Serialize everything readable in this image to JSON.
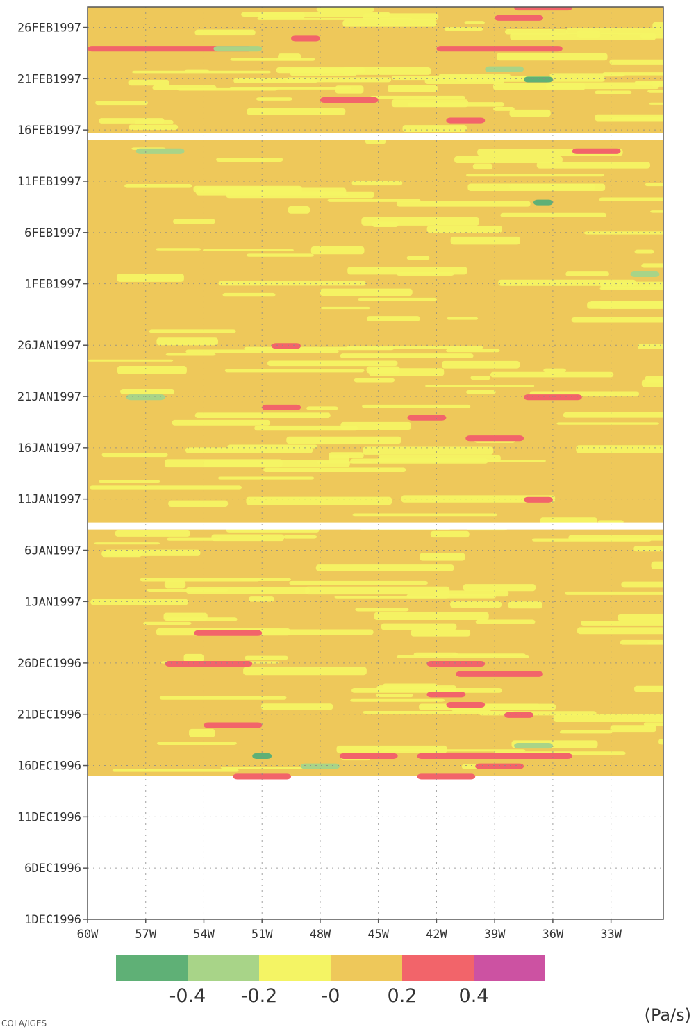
{
  "chart_data": {
    "type": "heatmap",
    "title": "",
    "xlabel": "",
    "ylabel": "",
    "x_ticks": [
      "60W",
      "57W",
      "54W",
      "51W",
      "48W",
      "45W",
      "42W",
      "39W",
      "36W",
      "33W"
    ],
    "x_tick_values": [
      -60,
      -57,
      -54,
      -51,
      -48,
      -45,
      -42,
      -39,
      -36,
      -33
    ],
    "xlim": [
      -60,
      -30.3
    ],
    "y_ticks": [
      "1DEC1996",
      "6DEC1996",
      "11DEC1996",
      "16DEC1996",
      "21DEC1996",
      "26DEC1996",
      "1JAN1997",
      "6JAN1997",
      "11JAN1997",
      "16JAN1997",
      "21JAN1997",
      "26JAN1997",
      "1FEB1997",
      "6FEB1997",
      "11FEB1997",
      "16FEB1997",
      "21FEB1997",
      "26FEB1997"
    ],
    "y_tick_values": [
      "1996-12-01",
      "1996-12-06",
      "1996-12-11",
      "1996-12-16",
      "1996-12-21",
      "1996-12-26",
      "1997-01-01",
      "1997-01-06",
      "1997-01-11",
      "1997-01-16",
      "1997-01-21",
      "1997-01-26",
      "1997-02-01",
      "1997-02-06",
      "1997-02-11",
      "1997-02-16",
      "1997-02-21",
      "1997-02-26"
    ],
    "ylim": [
      "1996-12-01",
      "1997-02-28"
    ],
    "data_start": "1996-12-15",
    "gaps": [
      [
        "1997-01-08",
        "1997-01-09"
      ],
      [
        "1997-02-15",
        "1997-02-16"
      ]
    ],
    "grid": true,
    "colorbar": {
      "placement": "bottom",
      "levels": [
        -0.4,
        -0.2,
        0,
        0.2,
        0.4
      ],
      "labels": [
        "-0.4",
        "-0.2",
        "-0",
        "0.2",
        "0.4"
      ],
      "colors": [
        "#5fb076",
        "#a8d488",
        "#f4f464",
        "#eec85a",
        "#f2646a",
        "#cc52a2"
      ],
      "unit": "(Pa/s)"
    },
    "dominant_value": 0.1,
    "features": [
      {
        "x": [
          -60,
          -51.5
        ],
        "date": "1997-02-24",
        "value": 0.3
      },
      {
        "x": [
          -49.5,
          -48
        ],
        "date": "1997-02-25",
        "value": 0.3
      },
      {
        "x": [
          -42,
          -35.5
        ],
        "date": "1997-02-24",
        "value": 0.3
      },
      {
        "x": [
          -39,
          -36.5
        ],
        "date": "1997-02-27",
        "value": 0.3
      },
      {
        "x": [
          -38,
          -35
        ],
        "date": "1997-02-28",
        "value": 0.3
      },
      {
        "x": [
          -39.5,
          -37.5
        ],
        "date": "1997-02-22",
        "value": -0.3
      },
      {
        "x": [
          -37.5,
          -36
        ],
        "date": "1997-02-21",
        "value": -0.5
      },
      {
        "x": [
          -53.5,
          -51
        ],
        "date": "1997-02-24",
        "value": -0.3
      },
      {
        "x": [
          -48,
          -45
        ],
        "date": "1997-02-19",
        "value": 0.3
      },
      {
        "x": [
          -41.5,
          -39.5
        ],
        "date": "1997-02-17",
        "value": 0.3
      },
      {
        "x": [
          -35,
          -32.5
        ],
        "date": "1997-02-14",
        "value": 0.3
      },
      {
        "x": [
          -57.5,
          -55
        ],
        "date": "1997-02-14",
        "value": -0.3
      },
      {
        "x": [
          -37,
          -36
        ],
        "date": "1997-02-09",
        "value": -0.5
      },
      {
        "x": [
          -32,
          -30.5
        ],
        "date": "1997-02-02",
        "value": -0.3
      },
      {
        "x": [
          -50.5,
          -49
        ],
        "date": "1997-01-26",
        "value": 0.3
      },
      {
        "x": [
          -58,
          -56
        ],
        "date": "1997-01-21",
        "value": -0.3
      },
      {
        "x": [
          -37.5,
          -34.5
        ],
        "date": "1997-01-21",
        "value": 0.3
      },
      {
        "x": [
          -51,
          -49
        ],
        "date": "1997-01-20",
        "value": 0.3
      },
      {
        "x": [
          -43.5,
          -41.5
        ],
        "date": "1997-01-19",
        "value": 0.3
      },
      {
        "x": [
          -40.5,
          -37.5
        ],
        "date": "1997-01-17",
        "value": 0.3
      },
      {
        "x": [
          -37.5,
          -36
        ],
        "date": "1997-01-11",
        "value": 0.3
      },
      {
        "x": [
          -54.5,
          -51
        ],
        "date": "1996-12-29",
        "value": 0.3
      },
      {
        "x": [
          -56,
          -51.5
        ],
        "date": "1996-12-26",
        "value": 0.3
      },
      {
        "x": [
          -42.5,
          -39.5
        ],
        "date": "1996-12-26",
        "value": 0.3
      },
      {
        "x": [
          -41,
          -36.5
        ],
        "date": "1996-12-25",
        "value": 0.3
      },
      {
        "x": [
          -42.5,
          -40.5
        ],
        "date": "1996-12-23",
        "value": 0.3
      },
      {
        "x": [
          -41.5,
          -39.5
        ],
        "date": "1996-12-22",
        "value": 0.3
      },
      {
        "x": [
          -38.5,
          -37
        ],
        "date": "1996-12-21",
        "value": 0.3
      },
      {
        "x": [
          -54,
          -51
        ],
        "date": "1996-12-20",
        "value": 0.3
      },
      {
        "x": [
          -47,
          -44
        ],
        "date": "1996-12-17",
        "value": 0.3
      },
      {
        "x": [
          -43,
          -35
        ],
        "date": "1996-12-17",
        "value": 0.3
      },
      {
        "x": [
          -52.5,
          -49.5
        ],
        "date": "1996-12-15",
        "value": 0.3
      },
      {
        "x": [
          -43,
          -40
        ],
        "date": "1996-12-15",
        "value": 0.3
      },
      {
        "x": [
          -40,
          -37.5
        ],
        "date": "1996-12-16",
        "value": 0.3
      },
      {
        "x": [
          -51.5,
          -50.5
        ],
        "date": "1996-12-17",
        "value": -0.5
      },
      {
        "x": [
          -49,
          -47
        ],
        "date": "1996-12-16",
        "value": -0.3
      },
      {
        "x": [
          -38,
          -36
        ],
        "date": "1996-12-18",
        "value": -0.3
      }
    ]
  },
  "footer": {
    "credit": "COLA/IGES"
  }
}
